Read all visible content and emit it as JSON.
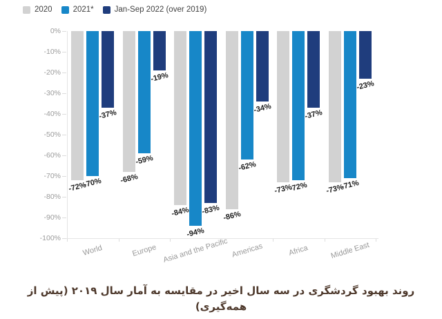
{
  "chart_data": {
    "type": "bar",
    "categories": [
      "World",
      "Europe",
      "Asia and the Pacific",
      "Americas",
      "Africa",
      "Middle East"
    ],
    "series": [
      {
        "name": "2020",
        "color": "#d2d2d2",
        "values": [
          -72,
          -68,
          -84,
          -86,
          -73,
          -73
        ]
      },
      {
        "name": "2021*",
        "color": "#1787c8",
        "values": [
          -70,
          -59,
          -94,
          -62,
          -72,
          -71
        ]
      },
      {
        "name": "Jan-Sep 2022 (over 2019)",
        "color": "#1f3d7d",
        "values": [
          -37,
          -19,
          -83,
          -34,
          -37,
          -23
        ]
      }
    ],
    "value_suffix": "%",
    "y_axis": {
      "ticks": [
        "0%",
        "-10%",
        "-20%",
        "-30%",
        "-40%",
        "-50%",
        "-60%",
        "-70%",
        "-80%",
        "-90%",
        "-100%"
      ],
      "min": -100,
      "max": 0
    },
    "legend_position": "top-left",
    "grid": false,
    "background": "#ffffff",
    "value_label_color": "#1c1c1c",
    "axis_label_color": "#9b9b9b"
  },
  "caption": "روند بهبود گردشگری در سه سال اخیر در مقایسه به آمار سال ۲۰۱۹ (پیش از همه‌گیری)"
}
